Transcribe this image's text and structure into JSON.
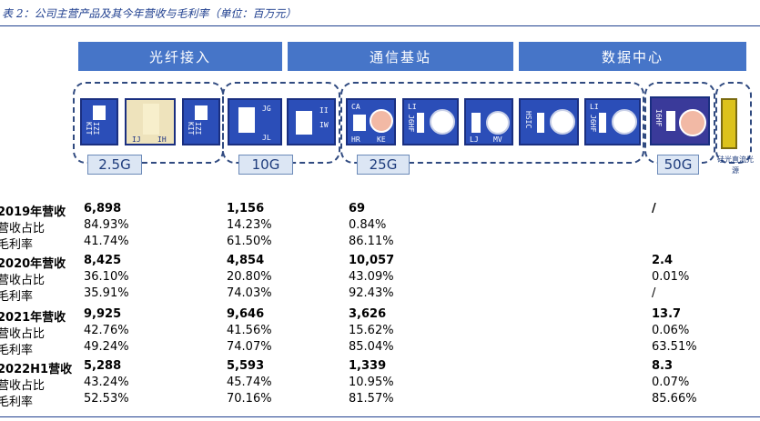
{
  "title": "表 2：公司主营产品及其今年营收与毛利率（单位：百万元）",
  "categories": [
    "光纤接入",
    "通信基站",
    "数据中心"
  ],
  "speeds": [
    "2.5G",
    "10G",
    "25G",
    "50G"
  ],
  "side_label": "硅光直流光源",
  "chip_labels": {
    "c1": "IZI KIT",
    "c2": [
      "IJ",
      "IH"
    ],
    "c3": "IZI KIT",
    "c4": [
      "JG",
      "JL"
    ],
    "c5": [
      "II",
      "IW"
    ],
    "c6": [
      "CA",
      "HR",
      "KE"
    ],
    "c7": [
      "LI",
      "J6HF"
    ],
    "c8": [
      "LJ",
      "MV"
    ],
    "c9": "HSIC",
    "c10": [
      "LI",
      "J6HF"
    ],
    "c11": "I6HF"
  },
  "rows": [
    {
      "label": "2019年营收",
      "bold": true,
      "values": [
        "6,898",
        "1,156",
        "69",
        "/"
      ]
    },
    {
      "label": "营收占比",
      "bold": false,
      "values": [
        "84.93%",
        "14.23%",
        "0.84%",
        ""
      ]
    },
    {
      "label": "毛利率",
      "bold": false,
      "values": [
        "41.74%",
        "61.50%",
        "86.11%",
        ""
      ]
    },
    {
      "label": "2020年营收",
      "bold": true,
      "values": [
        "8,425",
        "4,854",
        "10,057",
        "2.4"
      ]
    },
    {
      "label": "营收占比",
      "bold": false,
      "values": [
        "36.10%",
        "20.80%",
        "43.09%",
        "0.01%"
      ]
    },
    {
      "label": "毛利率",
      "bold": false,
      "values": [
        "35.91%",
        "74.03%",
        "92.43%",
        "/"
      ]
    },
    {
      "label": "2021年营收",
      "bold": true,
      "values": [
        "9,925",
        "9,646",
        "3,626",
        "13.7"
      ]
    },
    {
      "label": "营收占比",
      "bold": false,
      "values": [
        "42.76%",
        "41.56%",
        "15.62%",
        "0.06%"
      ]
    },
    {
      "label": "毛利率",
      "bold": false,
      "values": [
        "49.24%",
        "74.07%",
        "85.04%",
        "63.51%"
      ]
    },
    {
      "label": "2022H1营收",
      "bold": true,
      "values": [
        "5,288",
        "5,593",
        "1,339",
        "8.3"
      ]
    },
    {
      "label": "营收占比",
      "bold": false,
      "values": [
        "43.24%",
        "45.74%",
        "10.95%",
        "0.07%"
      ]
    },
    {
      "label": "毛利率",
      "bold": false,
      "values": [
        "52.53%",
        "70.16%",
        "81.57%",
        "85.66%"
      ]
    }
  ]
}
